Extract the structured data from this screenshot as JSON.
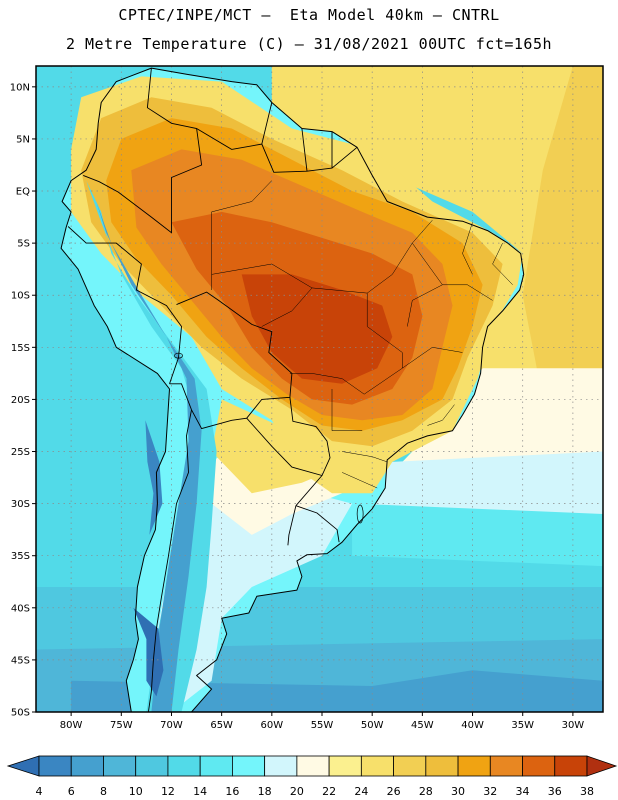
{
  "title_line1": "CPTEC/INPE/MCT –  Eta Model 40km – CNTRL",
  "title_line2": "2 Metre Temperature (C) – 31/08/2021 00UTC fct=165h",
  "lat_labels": [
    "10N",
    "5N",
    "EQ",
    "5S",
    "10S",
    "15S",
    "20S",
    "25S",
    "30S",
    "35S",
    "40S",
    "45S",
    "50S"
  ],
  "lat_values": [
    10,
    5,
    0,
    -5,
    -10,
    -15,
    -20,
    -25,
    -30,
    -35,
    -40,
    -45,
    -50
  ],
  "lon_labels": [
    "80W",
    "75W",
    "70W",
    "65W",
    "60W",
    "55W",
    "50W",
    "45W",
    "40W",
    "35W",
    "30W"
  ],
  "lon_values": [
    -80,
    -75,
    -70,
    -65,
    -60,
    -55,
    -50,
    -45,
    -40,
    -35,
    -30
  ],
  "extent": {
    "lon_min": -83.5,
    "lon_max": -27,
    "lat_min": -50,
    "lat_max": 12
  },
  "colorbar": {
    "labels": [
      "4",
      "6",
      "8",
      "10",
      "12",
      "14",
      "16",
      "18",
      "20",
      "22",
      "24",
      "26",
      "28",
      "30",
      "32",
      "34",
      "36",
      "38"
    ],
    "colors": [
      "#2f6fb3",
      "#3a86c2",
      "#45a0cf",
      "#4fb6d8",
      "#4fc8e0",
      "#52dae8",
      "#5fe9f1",
      "#74f5fb",
      "#d2f6fc",
      "#fffae4",
      "#fbf08f",
      "#f7e06b",
      "#f2cf53",
      "#eebe3c",
      "#f0a312",
      "#e88722",
      "#dc6310",
      "#c84308",
      "#b03010"
    ]
  },
  "contours": [
    {
      "level": 26,
      "color": "#f7e06b",
      "points": [
        [
          -79,
          9
        ],
        [
          -73,
          11
        ],
        [
          -65,
          10.5
        ],
        [
          -58,
          6
        ],
        [
          -50,
          4
        ],
        [
          -44,
          -1
        ],
        [
          -38,
          -4
        ],
        [
          -35,
          -6
        ],
        [
          -35.5,
          -9
        ],
        [
          -38,
          -13
        ],
        [
          -39.5,
          -18
        ],
        [
          -42,
          -23
        ],
        [
          -48,
          -26
        ],
        [
          -50,
          -29
        ],
        [
          -54,
          -29
        ],
        [
          -57,
          -27
        ],
        [
          -60,
          -22
        ],
        [
          -65,
          -19
        ],
        [
          -68,
          -14
        ],
        [
          -73,
          -10
        ],
        [
          -77,
          -6
        ],
        [
          -80,
          -2
        ],
        [
          -80,
          4
        ]
      ]
    },
    {
      "level": 30,
      "color": "#eebe3c",
      "points": [
        [
          -77,
          7
        ],
        [
          -72,
          9
        ],
        [
          -66,
          8
        ],
        [
          -60,
          5
        ],
        [
          -53,
          2
        ],
        [
          -47,
          -1
        ],
        [
          -40,
          -4
        ],
        [
          -37,
          -7
        ],
        [
          -38,
          -11
        ],
        [
          -40.5,
          -16
        ],
        [
          -42,
          -20
        ],
        [
          -46,
          -23
        ],
        [
          -50,
          -24.5
        ],
        [
          -54,
          -24
        ],
        [
          -58,
          -21
        ],
        [
          -63,
          -18
        ],
        [
          -67,
          -15
        ],
        [
          -71,
          -11
        ],
        [
          -75,
          -7
        ],
        [
          -78,
          -3
        ],
        [
          -79,
          2
        ]
      ]
    },
    {
      "level": 32,
      "color": "#f0a312",
      "points": [
        [
          -75,
          5
        ],
        [
          -70,
          7
        ],
        [
          -64,
          6
        ],
        [
          -58,
          3
        ],
        [
          -52,
          0
        ],
        [
          -46,
          -2
        ],
        [
          -41,
          -5
        ],
        [
          -39,
          -9
        ],
        [
          -40,
          -13
        ],
        [
          -41.5,
          -17
        ],
        [
          -43,
          -20
        ],
        [
          -47,
          -22
        ],
        [
          -51,
          -23
        ],
        [
          -55,
          -22.5
        ],
        [
          -59,
          -20
        ],
        [
          -63,
          -17
        ],
        [
          -66.5,
          -14
        ],
        [
          -70,
          -10
        ],
        [
          -73.5,
          -6.5
        ],
        [
          -76,
          -3
        ],
        [
          -76.5,
          1
        ]
      ]
    },
    {
      "level": 34,
      "color": "#e88722",
      "points": [
        [
          -74,
          2
        ],
        [
          -69,
          4
        ],
        [
          -63,
          3
        ],
        [
          -57,
          0.5
        ],
        [
          -51,
          -2
        ],
        [
          -46,
          -4
        ],
        [
          -43,
          -7
        ],
        [
          -42,
          -11
        ],
        [
          -43,
          -15
        ],
        [
          -44,
          -19
        ],
        [
          -47,
          -21.5
        ],
        [
          -51,
          -22
        ],
        [
          -55,
          -21.5
        ],
        [
          -58.5,
          -19.5
        ],
        [
          -62,
          -17
        ],
        [
          -65,
          -14
        ],
        [
          -68,
          -10.5
        ],
        [
          -71,
          -7
        ],
        [
          -73.5,
          -3.5
        ]
      ]
    },
    {
      "level": 36,
      "color": "#dc6310",
      "points": [
        [
          -70,
          -3
        ],
        [
          -65,
          -2
        ],
        [
          -60,
          -3
        ],
        [
          -55,
          -4.5
        ],
        [
          -50,
          -6
        ],
        [
          -46,
          -8
        ],
        [
          -45,
          -12
        ],
        [
          -46,
          -16
        ],
        [
          -48,
          -19
        ],
        [
          -52,
          -20.5
        ],
        [
          -56,
          -20
        ],
        [
          -59,
          -18
        ],
        [
          -62,
          -15
        ],
        [
          -64.5,
          -11
        ],
        [
          -67.5,
          -7.5
        ]
      ]
    },
    {
      "level": 38,
      "color": "#c84308",
      "points": [
        [
          -63,
          -8
        ],
        [
          -58,
          -8
        ],
        [
          -53,
          -9.5
        ],
        [
          -49,
          -11
        ],
        [
          -48,
          -14
        ],
        [
          -49.5,
          -17
        ],
        [
          -53,
          -18.5
        ],
        [
          -57,
          -18
        ],
        [
          -60,
          -15.5
        ],
        [
          -62,
          -12
        ]
      ]
    }
  ],
  "coastline": [
    [
      -77,
      8.5
    ],
    [
      -75.5,
      10.5
    ],
    [
      -72,
      11.8
    ],
    [
      -68.5,
      11.2
    ],
    [
      -64,
      10.5
    ],
    [
      -61.5,
      10.2
    ],
    [
      -60,
      8.5
    ],
    [
      -57,
      6
    ],
    [
      -54,
      5.7
    ],
    [
      -51.5,
      4.2
    ],
    [
      -50,
      1.5
    ],
    [
      -48.5,
      -1
    ],
    [
      -44.5,
      -2.5
    ],
    [
      -41,
      -2.9
    ],
    [
      -38.5,
      -3.8
    ],
    [
      -36.5,
      -5
    ],
    [
      -35.2,
      -6
    ],
    [
      -34.9,
      -8
    ],
    [
      -35.3,
      -9.5
    ],
    [
      -37,
      -11.5
    ],
    [
      -38.5,
      -13
    ],
    [
      -39,
      -15
    ],
    [
      -39.2,
      -17.5
    ],
    [
      -39.8,
      -19.5
    ],
    [
      -41,
      -21.5
    ],
    [
      -42,
      -23
    ],
    [
      -44.5,
      -23.5
    ],
    [
      -46.5,
      -24.2
    ],
    [
      -48.5,
      -25.8
    ],
    [
      -48.7,
      -28.5
    ],
    [
      -50,
      -30.5
    ],
    [
      -51.5,
      -32
    ],
    [
      -53,
      -33.7
    ],
    [
      -54.5,
      -34.8
    ],
    [
      -56.5,
      -34.9
    ],
    [
      -57.5,
      -35.5
    ],
    [
      -57,
      -37
    ],
    [
      -57.5,
      -38.3
    ],
    [
      -61.5,
      -38.9
    ],
    [
      -62.3,
      -40.5
    ],
    [
      -65,
      -41
    ],
    [
      -64.5,
      -42.5
    ],
    [
      -65.5,
      -45
    ],
    [
      -67.5,
      -46.5
    ],
    [
      -66,
      -47.8
    ],
    [
      -68,
      -50
    ],
    [
      -74,
      -50
    ],
    [
      -74.5,
      -47
    ],
    [
      -73.8,
      -45
    ],
    [
      -73.3,
      -43
    ],
    [
      -73.6,
      -41
    ],
    [
      -73.4,
      -38
    ],
    [
      -72.7,
      -35
    ],
    [
      -71.6,
      -32.5
    ],
    [
      -71.4,
      -30
    ],
    [
      -71.5,
      -27
    ],
    [
      -70.6,
      -25
    ],
    [
      -70.4,
      -22
    ],
    [
      -70.2,
      -19
    ],
    [
      -71.4,
      -17.5
    ],
    [
      -75.5,
      -15
    ],
    [
      -76.4,
      -13
    ],
    [
      -77.7,
      -11
    ],
    [
      -79.3,
      -7.5
    ],
    [
      -81,
      -5.5
    ],
    [
      -80.5,
      -3.5
    ],
    [
      -80,
      -2
    ],
    [
      -80.9,
      -1
    ],
    [
      -80,
      1
    ],
    [
      -78.5,
      2
    ],
    [
      -77.5,
      4
    ],
    [
      -77.3,
      6.5
    ],
    [
      -77,
      8.5
    ]
  ],
  "borders": [
    [
      [
        -72,
        11.8
      ],
      [
        -72.4,
        8
      ],
      [
        -70,
        6.5
      ],
      [
        -67.5,
        6
      ],
      [
        -67,
        2.5
      ],
      [
        -70,
        1.3
      ],
      [
        -70,
        -4
      ],
      [
        -72,
        -2.5
      ],
      [
        -75.3,
        -0.1
      ],
      [
        -77.2,
        0.9
      ],
      [
        -78.8,
        1.5
      ]
    ],
    [
      [
        -67.5,
        6
      ],
      [
        -64,
        4
      ],
      [
        -61,
        4.5
      ],
      [
        -60,
        8.5
      ]
    ],
    [
      [
        -61,
        4.5
      ],
      [
        -59.8,
        1.8
      ],
      [
        -56.5,
        1.9
      ],
      [
        -54,
        2.2
      ],
      [
        -51.5,
        4.2
      ]
    ],
    [
      [
        -57,
        6
      ],
      [
        -56.5,
        1.9
      ]
    ],
    [
      [
        -54,
        5.7
      ],
      [
        -54,
        2.2
      ]
    ],
    [
      [
        -80.3,
        -3.4
      ],
      [
        -78.5,
        -5
      ],
      [
        -75.5,
        -5
      ],
      [
        -73,
        -7
      ],
      [
        -73.5,
        -9.5
      ],
      [
        -70.5,
        -11
      ],
      [
        -69,
        -13
      ],
      [
        -69.3,
        -16
      ],
      [
        -70.2,
        -18.5
      ]
    ],
    [
      [
        -70.2,
        -18.5
      ],
      [
        -69,
        -18.5
      ],
      [
        -68,
        -21
      ],
      [
        -67,
        -22.8
      ],
      [
        -64,
        -22
      ],
      [
        -62.5,
        -21.8
      ],
      [
        -61,
        -20
      ],
      [
        -58.2,
        -19.8
      ],
      [
        -58,
        -17.5
      ],
      [
        -60.3,
        -15.5
      ],
      [
        -60,
        -13.5
      ],
      [
        -62,
        -12.8
      ],
      [
        -65.3,
        -10.5
      ],
      [
        -66.5,
        -9.7
      ],
      [
        -69.5,
        -10.9
      ]
    ],
    [
      [
        -68,
        -21
      ],
      [
        -68.5,
        -23.5
      ],
      [
        -68.3,
        -27
      ],
      [
        -69.5,
        -30
      ],
      [
        -70.3,
        -35
      ],
      [
        -71,
        -39
      ],
      [
        -71.5,
        -42
      ],
      [
        -71.8,
        -45
      ],
      [
        -72,
        -48
      ],
      [
        -72.3,
        -50
      ]
    ],
    [
      [
        -62.5,
        -21.8
      ],
      [
        -60,
        -24.5
      ],
      [
        -58,
        -26.5
      ],
      [
        -55,
        -27.3
      ],
      [
        -54.2,
        -25.6
      ],
      [
        -54.5,
        -24
      ],
      [
        -55.6,
        -22.6
      ],
      [
        -57.9,
        -22.1
      ],
      [
        -58.2,
        -19.8
      ]
    ],
    [
      [
        -57.6,
        -30.2
      ],
      [
        -55.5,
        -30.9
      ],
      [
        -53.5,
        -32.5
      ],
      [
        -53.3,
        -33.7
      ]
    ],
    [
      [
        -57.6,
        -30.2
      ],
      [
        -58.3,
        -33
      ],
      [
        -58.4,
        -34
      ]
    ],
    [
      [
        -55,
        -27.3
      ],
      [
        -57.6,
        -30.2
      ]
    ]
  ],
  "states": [
    [
      [
        -60,
        -7
      ],
      [
        -56,
        -9.3
      ],
      [
        -50.5,
        -9.8
      ],
      [
        -48,
        -8
      ]
    ],
    [
      [
        -50.5,
        -9.8
      ],
      [
        -50.5,
        -13
      ],
      [
        -47,
        -15.5
      ],
      [
        -47,
        -17
      ]
    ],
    [
      [
        -58.2,
        -17.5
      ],
      [
        -56,
        -17.5
      ],
      [
        -53,
        -18
      ],
      [
        -50.8,
        -19.5
      ]
    ],
    [
      [
        -50.8,
        -19.5
      ],
      [
        -47,
        -17
      ],
      [
        -44,
        -15
      ],
      [
        -41,
        -15.5
      ]
    ],
    [
      [
        -56,
        -9.3
      ],
      [
        -58,
        -11.5
      ],
      [
        -61,
        -13
      ]
    ],
    [
      [
        -48,
        -8
      ],
      [
        -46,
        -5
      ],
      [
        -44,
        -2.8
      ]
    ],
    [
      [
        -46,
        -5
      ],
      [
        -43,
        -9
      ],
      [
        -40.5,
        -9
      ],
      [
        -38,
        -10.5
      ]
    ],
    [
      [
        -43,
        -9
      ],
      [
        -46,
        -10.5
      ],
      [
        -46.5,
        -13
      ]
    ],
    [
      [
        -66,
        -9.5
      ],
      [
        -66,
        -2
      ],
      [
        -62,
        -1
      ],
      [
        -60,
        1
      ]
    ],
    [
      [
        -60,
        -7
      ],
      [
        -66,
        -8
      ]
    ],
    [
      [
        -54,
        -19
      ],
      [
        -54,
        -23
      ],
      [
        -51,
        -23
      ]
    ],
    [
      [
        -53,
        -25
      ],
      [
        -50,
        -25.5
      ],
      [
        -48.5,
        -26
      ]
    ],
    [
      [
        -53,
        -27
      ],
      [
        -49.5,
        -28.5
      ]
    ],
    [
      [
        -41.8,
        -20.5
      ],
      [
        -43,
        -22
      ],
      [
        -44.5,
        -22.5
      ]
    ],
    [
      [
        -40,
        -3
      ],
      [
        -41,
        -6
      ],
      [
        -40,
        -8
      ]
    ],
    [
      [
        -37,
        -5
      ],
      [
        -38,
        -7
      ],
      [
        -36,
        -9
      ]
    ]
  ]
}
